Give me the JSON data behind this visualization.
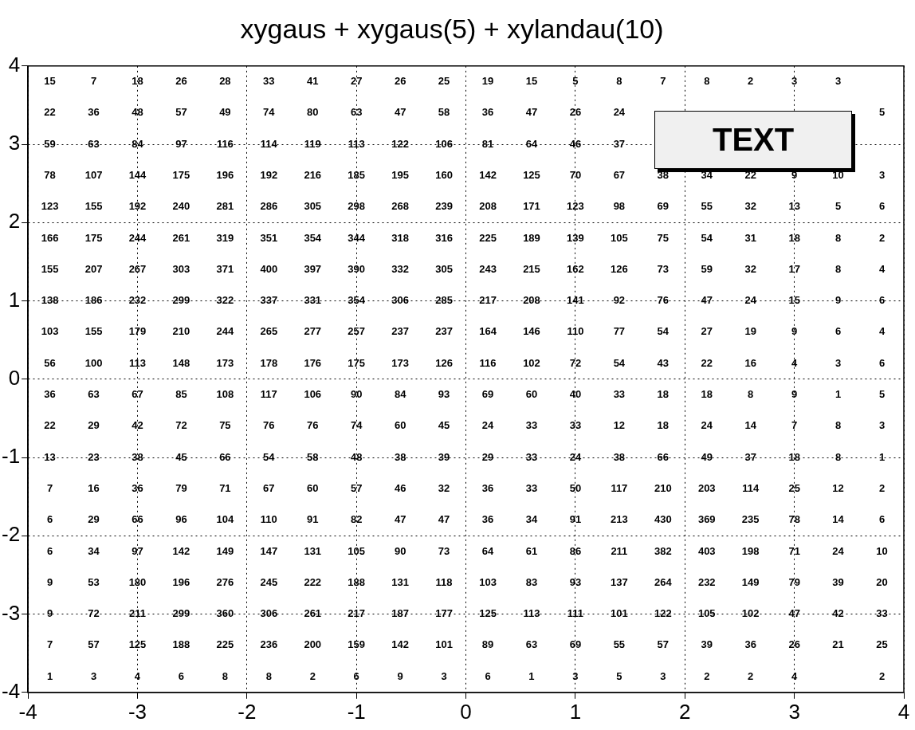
{
  "chart_data": {
    "type": "heatmap",
    "title": "xygaus + xygaus(5) + xylandau(10)",
    "xlim": [
      -4,
      4
    ],
    "ylim": [
      -4,
      4
    ],
    "xticks": [
      -4,
      -3,
      -2,
      -1,
      0,
      1,
      2,
      3,
      4
    ],
    "yticks": [
      -4,
      -3,
      -2,
      -1,
      0,
      1,
      2,
      3,
      4
    ],
    "grid": true,
    "data_labels": true,
    "annotations": [
      "TEXT"
    ],
    "cells": [
      [
        15,
        7,
        18,
        26,
        28,
        33,
        41,
        27,
        26,
        25,
        19,
        15,
        5,
        8,
        7,
        8,
        2,
        3,
        3,
        null
      ],
      [
        22,
        36,
        48,
        57,
        49,
        74,
        80,
        63,
        47,
        58,
        36,
        47,
        26,
        24,
        null,
        null,
        null,
        null,
        null,
        5
      ],
      [
        59,
        63,
        84,
        97,
        116,
        114,
        119,
        113,
        122,
        106,
        81,
        64,
        46,
        37,
        null,
        null,
        null,
        null,
        null,
        null
      ],
      [
        78,
        107,
        144,
        175,
        196,
        192,
        216,
        185,
        195,
        160,
        142,
        125,
        70,
        67,
        38,
        34,
        22,
        9,
        10,
        3
      ],
      [
        123,
        155,
        192,
        240,
        281,
        286,
        305,
        298,
        268,
        239,
        208,
        171,
        123,
        98,
        69,
        55,
        32,
        13,
        5,
        6
      ],
      [
        166,
        175,
        244,
        261,
        319,
        351,
        354,
        344,
        318,
        316,
        225,
        189,
        139,
        105,
        75,
        54,
        31,
        18,
        8,
        2
      ],
      [
        155,
        207,
        267,
        303,
        371,
        400,
        397,
        390,
        332,
        305,
        243,
        215,
        162,
        126,
        73,
        59,
        32,
        17,
        8,
        4
      ],
      [
        138,
        186,
        232,
        299,
        322,
        337,
        331,
        354,
        306,
        285,
        217,
        208,
        141,
        92,
        76,
        47,
        24,
        15,
        9,
        6
      ],
      [
        103,
        155,
        179,
        210,
        244,
        265,
        277,
        257,
        237,
        237,
        164,
        146,
        110,
        77,
        54,
        27,
        19,
        9,
        6,
        4
      ],
      [
        56,
        100,
        113,
        148,
        173,
        178,
        176,
        175,
        173,
        126,
        116,
        102,
        72,
        54,
        43,
        22,
        16,
        4,
        3,
        6
      ],
      [
        36,
        63,
        67,
        85,
        108,
        117,
        106,
        90,
        84,
        93,
        69,
        60,
        40,
        33,
        18,
        18,
        8,
        9,
        1,
        5
      ],
      [
        22,
        29,
        42,
        72,
        75,
        76,
        76,
        74,
        60,
        45,
        24,
        33,
        33,
        12,
        18,
        24,
        14,
        7,
        8,
        3
      ],
      [
        13,
        23,
        38,
        45,
        66,
        54,
        58,
        48,
        38,
        39,
        29,
        33,
        24,
        38,
        66,
        49,
        37,
        18,
        8,
        1
      ],
      [
        7,
        16,
        36,
        79,
        71,
        67,
        60,
        57,
        46,
        32,
        36,
        33,
        50,
        117,
        210,
        203,
        114,
        25,
        12,
        2
      ],
      [
        6,
        29,
        66,
        96,
        104,
        110,
        91,
        82,
        47,
        47,
        36,
        34,
        91,
        213,
        430,
        369,
        235,
        78,
        14,
        6
      ],
      [
        6,
        34,
        97,
        142,
        149,
        147,
        131,
        105,
        90,
        73,
        64,
        61,
        86,
        211,
        382,
        403,
        198,
        71,
        24,
        10
      ],
      [
        9,
        53,
        180,
        196,
        276,
        245,
        222,
        188,
        131,
        118,
        103,
        83,
        93,
        137,
        264,
        232,
        149,
        79,
        39,
        20
      ],
      [
        9,
        72,
        211,
        299,
        360,
        306,
        261,
        217,
        187,
        177,
        125,
        113,
        111,
        101,
        122,
        105,
        102,
        47,
        42,
        33
      ],
      [
        7,
        57,
        125,
        188,
        225,
        236,
        200,
        159,
        142,
        101,
        89,
        63,
        69,
        55,
        57,
        39,
        36,
        26,
        21,
        25
      ],
      [
        1,
        3,
        4,
        6,
        8,
        8,
        2,
        6,
        9,
        3,
        6,
        1,
        3,
        5,
        3,
        2,
        2,
        4,
        null,
        2
      ]
    ]
  }
}
